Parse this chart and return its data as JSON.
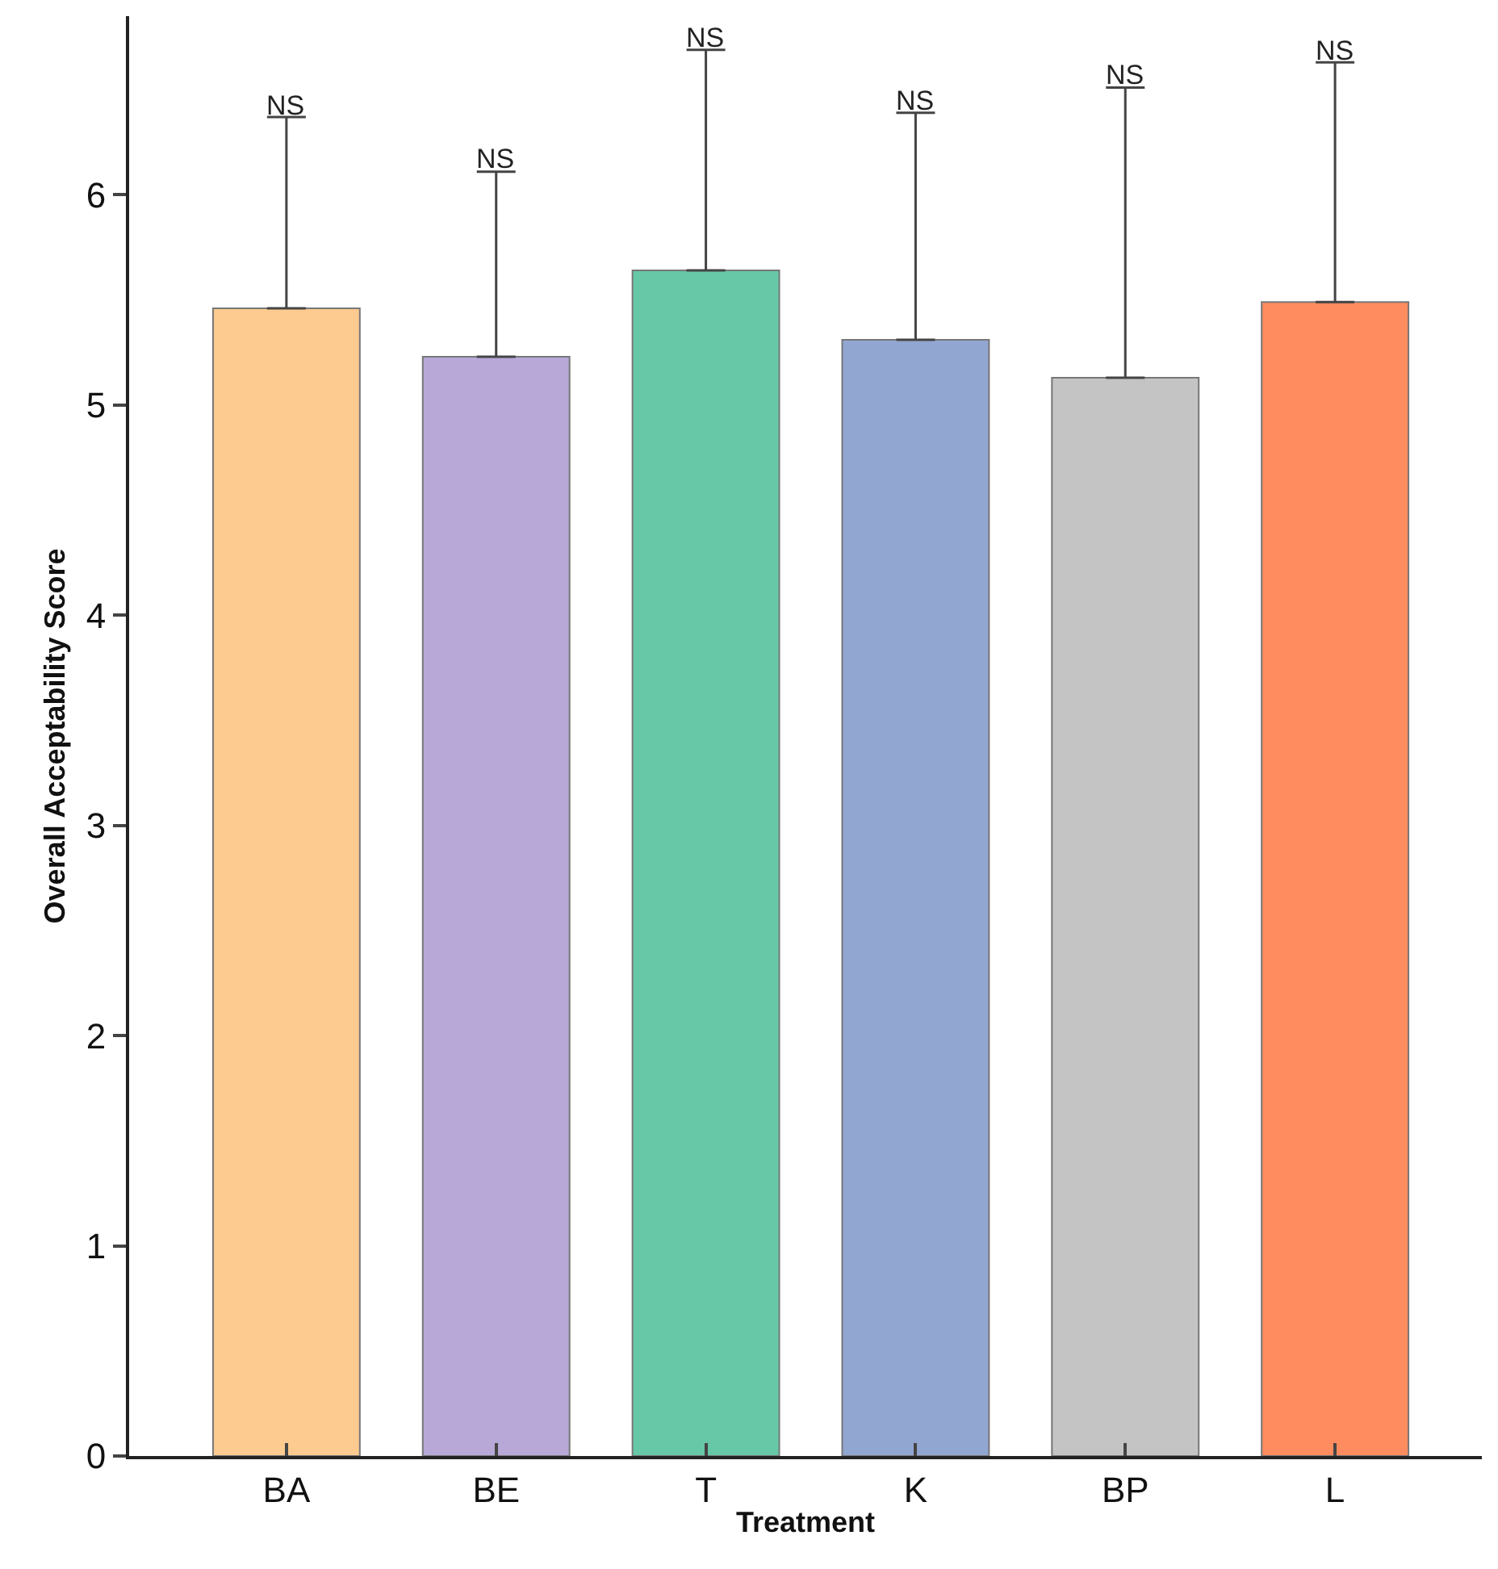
{
  "chart_data": {
    "type": "bar",
    "xlabel": "Treatment",
    "ylabel": "Overall Acceptability Score",
    "categories": [
      "BA",
      "BE",
      "T",
      "K",
      "BP",
      "L"
    ],
    "values": [
      5.46,
      5.23,
      5.64,
      5.31,
      5.13,
      5.49
    ],
    "colors": [
      "#fdca8f",
      "#b7a8d8",
      "#66c8a6",
      "#92a6d2",
      "#c4c4c4",
      "#fe8c5e"
    ],
    "errors": [
      [
        5.46,
        6.37
      ],
      [
        5.23,
        6.11
      ],
      [
        5.64,
        6.69
      ],
      [
        5.31,
        6.39
      ],
      [
        5.13,
        6.51
      ],
      [
        5.49,
        6.63
      ]
    ],
    "annotations": [
      {
        "text": "NS",
        "x": "BA",
        "y": 6.37
      },
      {
        "text": "NS",
        "x": "BE",
        "y": 6.11
      },
      {
        "text": "NS",
        "x": "T",
        "y": 6.69
      },
      {
        "text": "NS",
        "x": "K",
        "y": 6.39
      },
      {
        "text": "NS",
        "x": "BP",
        "y": 6.51
      },
      {
        "text": "NS",
        "x": "L",
        "y": 6.63
      }
    ],
    "ylim": [
      0,
      6.85
    ],
    "yticks": [
      0,
      1,
      2,
      3,
      4,
      5,
      6
    ],
    "legend": false
  }
}
